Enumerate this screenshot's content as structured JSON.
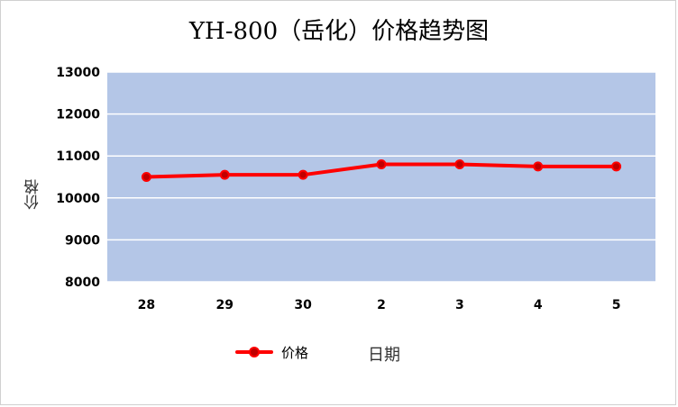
{
  "chart_data": {
    "type": "line",
    "title": "YH-800（岳化）价格趋势图",
    "xlabel": "日期",
    "ylabel": "价格",
    "categories": [
      "28",
      "29",
      "30",
      "2",
      "3",
      "4",
      "5"
    ],
    "series": [
      {
        "name": "价格",
        "values": [
          10500,
          10550,
          10550,
          10800,
          10800,
          10750,
          10750
        ]
      }
    ],
    "ylim": [
      8000,
      13000
    ],
    "yticks": [
      "8000",
      "9000",
      "10000",
      "11000",
      "12000",
      "13000"
    ],
    "grid": true,
    "legend": "bottom",
    "colors": {
      "plot_bg": "#b4c6e7",
      "line": "#ff0000",
      "marker": "#c00000",
      "grid": "#ffffff"
    }
  }
}
